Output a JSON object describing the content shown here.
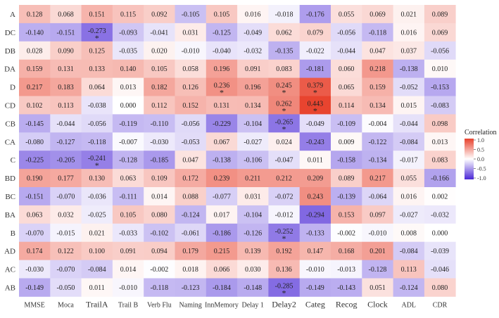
{
  "chart_data": {
    "type": "heatmap",
    "title": "",
    "xlabel": "",
    "ylabel": "",
    "x": [
      "MMSE",
      "Moca",
      "TrailA",
      "Trail B",
      "Verb Flu",
      "Naming",
      "InnMemory",
      "Delay 1",
      "Delay2",
      "Categ",
      "Recog",
      "Clock",
      "ADL",
      "CDR"
    ],
    "y": [
      "A",
      "DC",
      "DB",
      "DA",
      "D",
      "CD",
      "CB",
      "CA",
      "C",
      "BD",
      "BC",
      "BA",
      "B",
      "AD",
      "AC",
      "AB"
    ],
    "values": [
      [
        0.128,
        0.068,
        0.151,
        0.115,
        0.092,
        -0.105,
        0.105,
        0.016,
        -0.018,
        -0.176,
        0.055,
        0.069,
        0.021,
        0.089
      ],
      [
        -0.14,
        -0.151,
        -0.273,
        -0.093,
        -0.041,
        0.031,
        -0.125,
        -0.049,
        0.062,
        0.079,
        -0.056,
        -0.118,
        0.016,
        0.069
      ],
      [
        0.028,
        0.09,
        0.125,
        -0.035,
        0.02,
        -0.01,
        -0.04,
        -0.032,
        -0.135,
        -0.022,
        -0.044,
        0.047,
        0.037,
        -0.056
      ],
      [
        0.159,
        0.131,
        0.133,
        0.14,
        0.105,
        0.058,
        0.196,
        0.091,
        0.083,
        -0.181,
        0.06,
        0.218,
        -0.138,
        0.01
      ],
      [
        0.217,
        0.183,
        0.064,
        0.013,
        0.182,
        0.126,
        0.236,
        0.196,
        0.245,
        0.379,
        0.065,
        0.159,
        -0.052,
        -0.153
      ],
      [
        0.102,
        0.113,
        -0.038,
        0.0,
        0.112,
        0.152,
        0.131,
        0.134,
        0.262,
        0.443,
        0.114,
        0.134,
        0.015,
        -0.083
      ],
      [
        -0.145,
        -0.044,
        -0.056,
        -0.119,
        -0.11,
        -0.056,
        -0.229,
        -0.104,
        -0.265,
        -0.049,
        -0.109,
        -0.004,
        -0.044,
        0.098
      ],
      [
        -0.08,
        -0.127,
        -0.118,
        -0.007,
        -0.03,
        -0.053,
        0.067,
        -0.027,
        0.024,
        -0.243,
        0.009,
        -0.122,
        -0.084,
        0.013
      ],
      [
        -0.225,
        -0.205,
        -0.241,
        -0.128,
        -0.185,
        0.047,
        -0.138,
        -0.106,
        -0.047,
        0.011,
        -0.158,
        -0.134,
        -0.017,
        0.083
      ],
      [
        0.19,
        0.177,
        0.13,
        0.063,
        0.109,
        0.172,
        0.239,
        0.211,
        0.212,
        0.209,
        0.089,
        0.217,
        0.055,
        -0.166
      ],
      [
        -0.151,
        -0.07,
        -0.036,
        -0.111,
        0.014,
        0.088,
        -0.077,
        0.031,
        -0.072,
        0.243,
        -0.139,
        -0.064,
        0.016,
        0.002
      ],
      [
        0.063,
        0.032,
        -0.025,
        0.105,
        0.08,
        -0.124,
        0.017,
        -0.104,
        -0.012,
        -0.294,
        0.153,
        0.097,
        -0.027,
        -0.032
      ],
      [
        -0.07,
        -0.015,
        0.021,
        -0.033,
        -0.102,
        -0.061,
        -0.186,
        -0.126,
        -0.252,
        -0.133,
        -0.002,
        -0.01,
        0.008,
        0.0
      ],
      [
        0.174,
        0.122,
        0.1,
        0.091,
        0.094,
        0.179,
        0.215,
        0.139,
        0.192,
        0.147,
        0.168,
        0.201,
        -0.084,
        -0.039
      ],
      [
        -0.03,
        -0.07,
        -0.084,
        0.014,
        -0.002,
        0.018,
        0.066,
        0.03,
        0.136,
        -0.01,
        -0.013,
        -0.128,
        0.113,
        -0.046
      ],
      [
        -0.149,
        -0.05,
        0.011,
        -0.01,
        -0.118,
        -0.123,
        -0.184,
        -0.148,
        -0.285,
        -0.149,
        -0.143,
        0.051,
        -0.124,
        0.08
      ]
    ],
    "significance_marker": "*",
    "significant_cells": [
      [
        "DC",
        "TrailA"
      ],
      [
        "D",
        "InnMemory"
      ],
      [
        "D",
        "Delay2"
      ],
      [
        "D",
        "Categ"
      ],
      [
        "CD",
        "Delay2"
      ],
      [
        "CD",
        "Categ"
      ],
      [
        "CB",
        "Delay2"
      ],
      [
        "C",
        "TrailA"
      ],
      [
        "B",
        "Delay2"
      ],
      [
        "AB",
        "Delay2"
      ]
    ],
    "enlarged_column_labels": [
      "TrailA",
      "Delay2",
      "Categ",
      "Recog",
      "Clock"
    ],
    "legend": {
      "title": "Correlation",
      "ticks": [
        "1.0",
        "0.5",
        "0.0",
        "-0.5",
        "-1.0"
      ],
      "range": [
        -1.0,
        1.0
      ],
      "position": "right"
    },
    "colors": {
      "positive": "#e8412c",
      "neutral": "#ffffff",
      "negative": "#4a26d6"
    },
    "grid": false
  }
}
